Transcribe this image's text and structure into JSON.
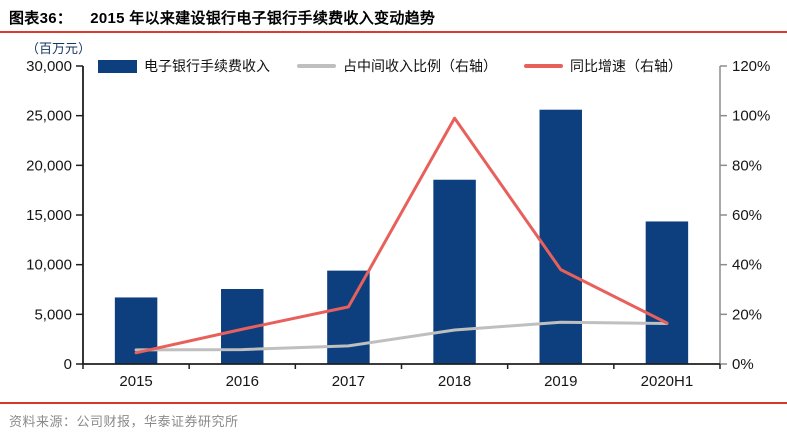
{
  "page": {
    "figure_label": "图表36：",
    "title": "2015 年以来建设银行电子银行手续费收入变动趋势",
    "unit_label": "（百万元）",
    "source": "资料来源：公司财报，华泰证券研究所"
  },
  "colors": {
    "bar": "#0d3e7e",
    "ratio_line": "#bfbfbf",
    "growth_line": "#e8605c",
    "accent_rule": "#de3b2f",
    "axis_dark": "#1f1f1f",
    "axis_right": "#8c8c8c",
    "tick_text": "#161616",
    "source_text": "#8a8a8a"
  },
  "chart_data": {
    "type": "bar",
    "subtype": "combo-bar-line",
    "title": "2015 年以来建设银行电子银行手续费收入变动趋势",
    "categories": [
      "2015",
      "2016",
      "2017",
      "2018",
      "2019",
      "2020H1"
    ],
    "series": [
      {
        "key": "fee-income-bars",
        "name": "电子银行手续费收入",
        "type": "bar",
        "axis": "left",
        "color": "#0d3e7e",
        "values": [
          6700,
          7550,
          9400,
          18550,
          25600,
          14350
        ]
      },
      {
        "key": "ratio-line",
        "name": "占中间收入比例（右轴）",
        "type": "line",
        "axis": "right",
        "color": "#bfbfbf",
        "values": [
          5.7,
          5.8,
          7.3,
          13.7,
          16.8,
          16.3
        ]
      },
      {
        "key": "growth-line",
        "name": "同比增速（右轴）",
        "type": "line",
        "axis": "right",
        "color": "#e8605c",
        "values": [
          4.5,
          14,
          23,
          99,
          38,
          16.5
        ]
      }
    ],
    "left_axis": {
      "label": "（百万元）",
      "min": 0,
      "max": 30000,
      "tick_labels": [
        "0",
        "5,000",
        "10,000",
        "15,000",
        "20,000",
        "25,000",
        "30,000"
      ]
    },
    "right_axis": {
      "min": 0,
      "max": 120,
      "tick_labels": [
        "0%",
        "20%",
        "40%",
        "60%",
        "80%",
        "100%",
        "120%"
      ]
    },
    "legend_position": "top",
    "grid": false
  }
}
